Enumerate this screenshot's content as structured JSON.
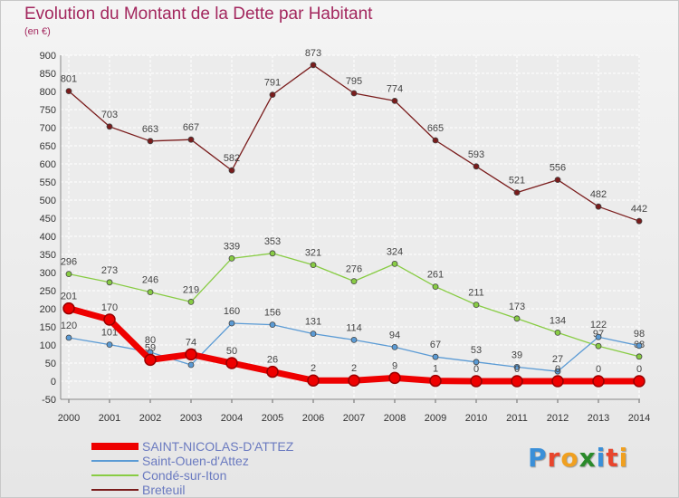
{
  "chart_data": {
    "type": "line",
    "title": "Evolution du Montant de la Dette par Habitant",
    "subtitle": "(en €)",
    "x": [
      "2000",
      "2001",
      "2002",
      "2003",
      "2004",
      "2005",
      "2006",
      "2007",
      "2008",
      "2009",
      "2010",
      "2011",
      "2012",
      "2013",
      "2014"
    ],
    "ylim": [
      -50,
      900
    ],
    "yticks": [
      -50,
      0,
      50,
      100,
      150,
      200,
      250,
      300,
      350,
      400,
      450,
      500,
      550,
      600,
      650,
      700,
      750,
      800,
      850,
      900
    ],
    "grid": true,
    "legend_position": "bottom-left",
    "series": [
      {
        "name": "SAINT-NICOLAS-D'ATTEZ",
        "color": "#ee0000",
        "values": [
          201,
          170,
          59,
          74,
          50,
          26,
          2,
          2,
          9,
          1,
          0,
          0,
          0,
          0,
          0
        ]
      },
      {
        "name": "Saint-Ouen-d'Attez",
        "color": "#5b9bd5",
        "values": [
          120,
          101,
          80,
          45,
          160,
          156,
          131,
          114,
          94,
          67,
          53,
          39,
          27,
          122,
          98
        ]
      },
      {
        "name": "Condé-sur-Iton",
        "color": "#88cc44",
        "values": [
          296,
          273,
          246,
          219,
          339,
          353,
          321,
          276,
          324,
          261,
          211,
          173,
          134,
          97,
          68
        ]
      },
      {
        "name": "Breteuil",
        "color": "#7a1c1c",
        "values": [
          801,
          703,
          663,
          667,
          582,
          791,
          873,
          795,
          774,
          665,
          593,
          521,
          556,
          482,
          442
        ]
      }
    ]
  },
  "brand": {
    "letters": [
      "P",
      "r",
      "o",
      "x",
      "i",
      "t",
      "i"
    ],
    "colors": [
      "#3a8fd8",
      "#e8452c",
      "#f0a020",
      "#2a8a2a",
      "#3a8fd8",
      "#e8452c",
      "#f0a020"
    ]
  }
}
